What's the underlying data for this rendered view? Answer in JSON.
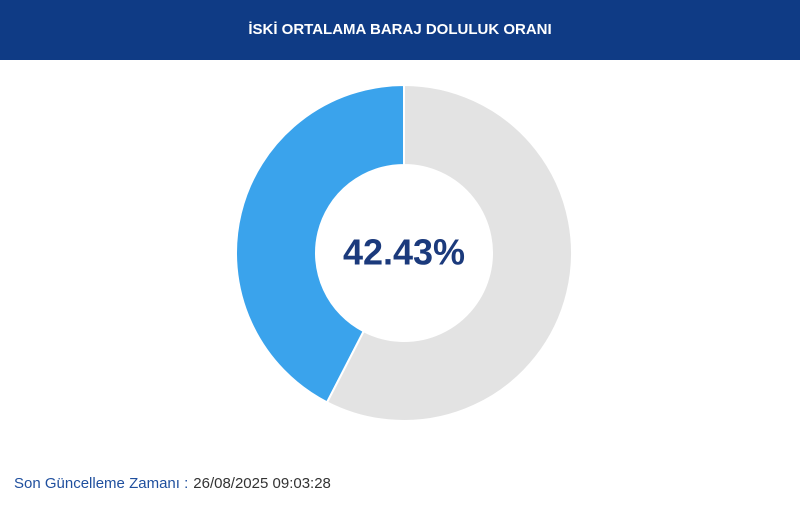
{
  "chart_data": {
    "type": "pie",
    "donut": true,
    "title": "İSKİ ORTALAMA BARAJ DOLULUK ORANI",
    "values": [
      42.43,
      57.57
    ],
    "value_labels": [
      "42.43%",
      null
    ],
    "colors": [
      "#3aa3ec",
      "#e3e3e3"
    ],
    "direction": "counterclockwise"
  },
  "footer": {
    "label": "Son Güncelleme Zamanı :",
    "value": "26/08/2025 09:03:28"
  }
}
